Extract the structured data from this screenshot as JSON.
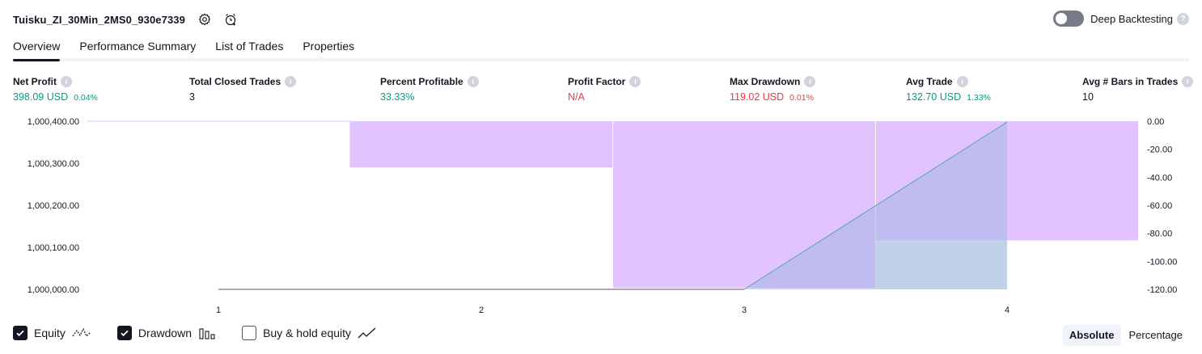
{
  "header": {
    "strategy_name": "Tuisku_ZI_30Min_2MS0_930e7339",
    "deep_backtesting_label": "Deep Backtesting"
  },
  "tabs": [
    {
      "label": "Overview",
      "active": true
    },
    {
      "label": "Performance Summary",
      "active": false
    },
    {
      "label": "List of Trades",
      "active": false
    },
    {
      "label": "Properties",
      "active": false
    }
  ],
  "metrics": {
    "net_profit": {
      "label": "Net Profit",
      "value": "398.09 USD",
      "pct": "0.04%"
    },
    "total_closed_trades": {
      "label": "Total Closed Trades",
      "value": "3"
    },
    "percent_profitable": {
      "label": "Percent Profitable",
      "value": "33.33%"
    },
    "profit_factor": {
      "label": "Profit Factor",
      "value": "N/A"
    },
    "max_drawdown": {
      "label": "Max Drawdown",
      "value": "119.02 USD",
      "pct": "0.01%"
    },
    "avg_trade": {
      "label": "Avg Trade",
      "value": "132.70 USD",
      "pct": "1.33%"
    },
    "avg_bars": {
      "label": "Avg # Bars in Trades",
      "value": "10"
    }
  },
  "chart_data": {
    "type": "line",
    "x": [
      1,
      2,
      3,
      4
    ],
    "x_ticks": [
      "1",
      "2",
      "3",
      "4"
    ],
    "left_axis": {
      "ticks": [
        "1,000,400.00",
        "1,000,300.00",
        "1,000,200.00",
        "1,000,100.00",
        "1,000,000.00"
      ],
      "ylim": [
        1000000,
        1000400
      ]
    },
    "right_axis": {
      "ticks": [
        "0.00",
        "-20.00",
        "-40.00",
        "-60.00",
        "-80.00",
        "-100.00",
        "-120.00"
      ],
      "ylim": [
        -120,
        0
      ]
    },
    "series": [
      {
        "name": "Equity",
        "axis": "left",
        "x": [
          1,
          3,
          4
        ],
        "y": [
          1000000,
          1000000,
          1000398.09
        ],
        "color": "#2962ff"
      },
      {
        "name": "Buy & hold equity",
        "axis": "left",
        "x": [
          1,
          3
        ],
        "y": [
          1000000,
          1000000
        ],
        "color": "#787b86"
      }
    ],
    "drawdown_bars": [
      {
        "x": 2,
        "value": -33
      },
      {
        "x": 3,
        "value": -119.02
      },
      {
        "x": 4,
        "value": -85
      }
    ],
    "run_up_bars": [
      {
        "x": 4,
        "from": -85,
        "to": -120
      }
    ],
    "colors": {
      "drawdown": "#e1c4fd",
      "run_up": "#dff3ef",
      "equity_fill": "#a6b5e6",
      "grid": "#f0f3fa"
    }
  },
  "footer": {
    "equity_label": "Equity",
    "equity_checked": true,
    "drawdown_label": "Drawdown",
    "drawdown_checked": true,
    "buy_hold_label": "Buy & hold equity",
    "buy_hold_checked": false,
    "absolute_label": "Absolute",
    "percentage_label": "Percentage"
  },
  "icons": {
    "settings": "gear-icon",
    "alert": "alert-clock-icon",
    "help": "help-icon"
  }
}
